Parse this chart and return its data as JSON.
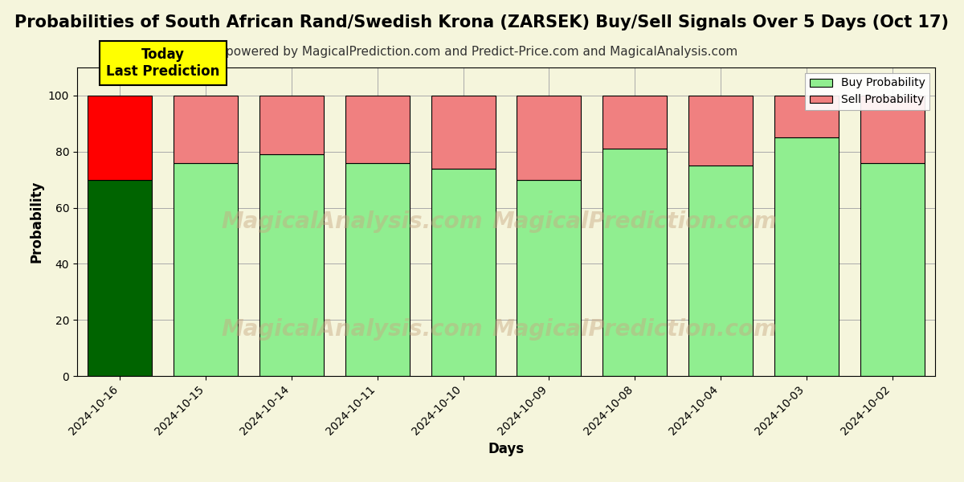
{
  "title": "Probabilities of South African Rand/Swedish Krona (ZARSEK) Buy/Sell Signals Over 5 Days (Oct 17)",
  "subtitle": "powered by MagicalPrediction.com and Predict-Price.com and MagicalAnalysis.com",
  "xlabel": "Days",
  "ylabel": "Probability",
  "dates": [
    "2024-10-16",
    "2024-10-15",
    "2024-10-14",
    "2024-10-11",
    "2024-10-10",
    "2024-10-09",
    "2024-10-08",
    "2024-10-04",
    "2024-10-03",
    "2024-10-02"
  ],
  "buy_values": [
    70,
    76,
    79,
    76,
    74,
    70,
    81,
    75,
    85,
    76
  ],
  "sell_values": [
    30,
    24,
    21,
    24,
    26,
    30,
    19,
    25,
    15,
    24
  ],
  "buy_colors_today": "#006400",
  "sell_colors_today": "#ff0000",
  "buy_colors_rest": "#90EE90",
  "sell_colors_rest": "#F08080",
  "bar_edge_color": "black",
  "bar_edge_width": 0.8,
  "ylim": [
    0,
    110
  ],
  "yticks": [
    0,
    20,
    40,
    60,
    80,
    100
  ],
  "dashed_line_y": 110,
  "legend_buy_label": "Buy Probability",
  "legend_sell_label": "Sell Probability",
  "today_box_text": "Today\nLast Prediction",
  "today_box_color": "#FFFF00",
  "watermark_text1": "MagicalAnalysis.com",
  "watermark_text2": "MagicalPrediction.com",
  "figsize": [
    12,
    6
  ],
  "dpi": 100,
  "bg_color": "#f5f5dc",
  "plot_bg_color": "#f5f5dc",
  "grid_color": "#aaaaaa",
  "title_fontsize": 15,
  "subtitle_fontsize": 11,
  "axis_label_fontsize": 12,
  "tick_fontsize": 10,
  "bar_width": 0.75
}
